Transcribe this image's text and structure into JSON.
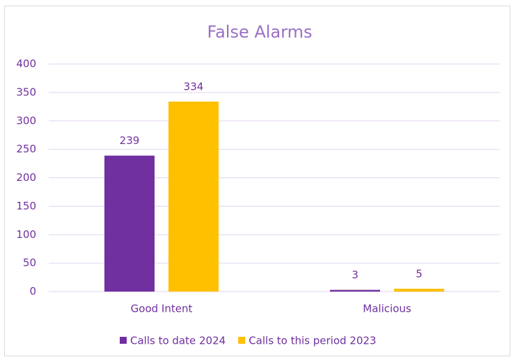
{
  "chart_data": {
    "type": "bar",
    "title": "False Alarms",
    "categories": [
      "Good Intent",
      "Malicious"
    ],
    "series": [
      {
        "name": "Calls to date 2024",
        "color": "#7030a0",
        "values": [
          239,
          3
        ]
      },
      {
        "name": "Calls to this period 2023",
        "color": "#ffc000",
        "values": [
          334,
          5
        ]
      }
    ],
    "ylim": [
      0,
      400
    ],
    "yticks": [
      0,
      50,
      100,
      150,
      200,
      250,
      300,
      350,
      400
    ],
    "grid": true,
    "legend": "bottom"
  }
}
